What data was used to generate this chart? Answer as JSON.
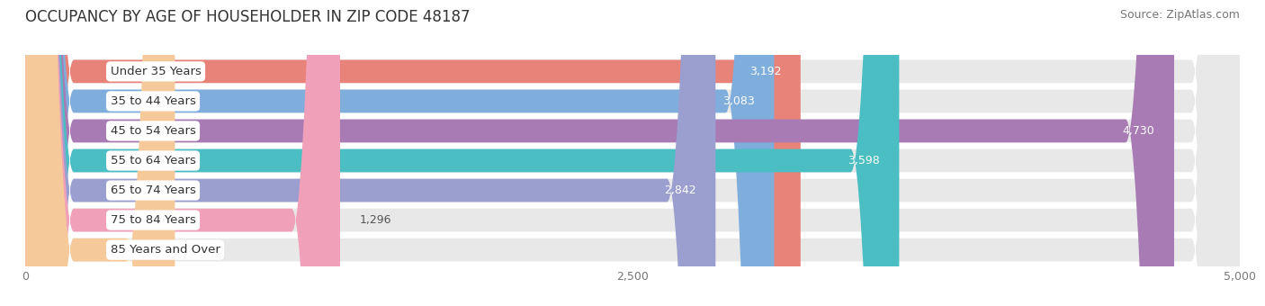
{
  "title": "OCCUPANCY BY AGE OF HOUSEHOLDER IN ZIP CODE 48187",
  "source": "Source: ZipAtlas.com",
  "categories": [
    "Under 35 Years",
    "35 to 44 Years",
    "45 to 54 Years",
    "55 to 64 Years",
    "65 to 74 Years",
    "75 to 84 Years",
    "85 Years and Over"
  ],
  "values": [
    3192,
    3083,
    4730,
    3598,
    2842,
    1296,
    616
  ],
  "bar_colors": [
    "#E8837A",
    "#7FAEDD",
    "#A87BB5",
    "#4BBEC4",
    "#9A9FD0",
    "#F0A0B8",
    "#F5C99A"
  ],
  "xlim": [
    0,
    5000
  ],
  "xticks": [
    0,
    2500,
    5000
  ],
  "background_color": "#f7f7f7",
  "bar_bg_color": "#e8e8e8",
  "white_bg": "#ffffff",
  "title_fontsize": 12,
  "source_fontsize": 9,
  "label_fontsize": 9.5,
  "value_fontsize": 9
}
